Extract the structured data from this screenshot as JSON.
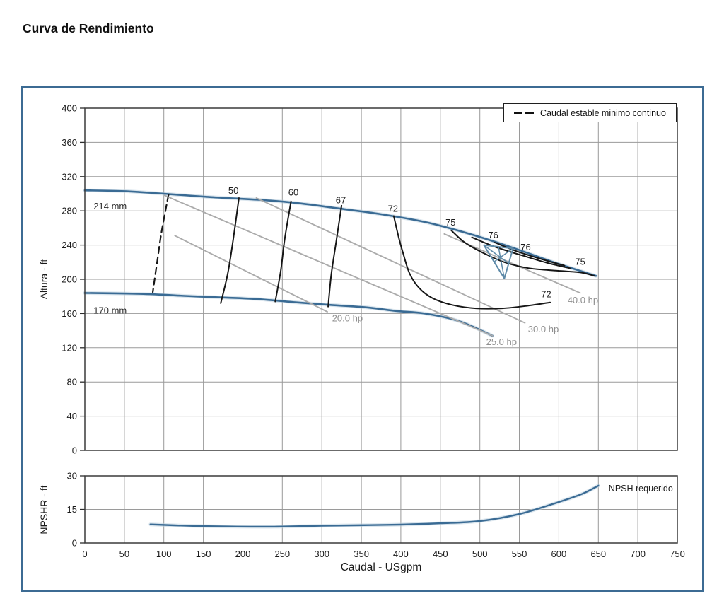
{
  "title": "Curva de Rendimiento",
  "axes": {
    "x_label": "Caudal - USgpm",
    "main_y_label": "Altura - ft",
    "npsh_y_label": "NPSHR - ft"
  },
  "legend": {
    "label": "Caudal estable minimo continuo",
    "symbol": "dashed-line"
  },
  "colors": {
    "panel_border": "#3c6b93",
    "curve_blue": "#3a6b94",
    "curve_halo": "#bdd2e0",
    "efficiency_black": "#161616",
    "power_gray": "#ababab",
    "label_gray": "#8f8f8f",
    "grid_gray": "#9a9a9a",
    "marker_blue": "#5e8aa8"
  },
  "chart_data": [
    {
      "type": "line",
      "name": "performance-curve",
      "ylabel": "Altura - ft",
      "xlabel": "Caudal - USgpm",
      "xlim": [
        0,
        750
      ],
      "ylim": [
        0,
        400
      ],
      "xticks": [
        0,
        50,
        100,
        150,
        200,
        250,
        300,
        350,
        400,
        450,
        500,
        550,
        600,
        650,
        700,
        750
      ],
      "yticks": [
        0,
        40,
        80,
        120,
        160,
        200,
        240,
        280,
        320,
        360,
        400
      ],
      "show_x_tick_labels": false,
      "grid": true,
      "legend_position": "top-right",
      "series": [
        {
          "name": "impeller-214mm",
          "color": "#3a6b94",
          "width": 2.6,
          "halo": true,
          "points": [
            [
              0,
              304
            ],
            [
              50,
              303
            ],
            [
              100,
              300
            ],
            [
              160,
              296
            ],
            [
              220,
              293
            ],
            [
              270,
              289
            ],
            [
              320,
              283
            ],
            [
              375,
              276
            ],
            [
              430,
              267
            ],
            [
              480,
              255
            ],
            [
              535,
              239
            ],
            [
              590,
              221
            ],
            [
              647,
              204
            ]
          ]
        },
        {
          "name": "impeller-170mm",
          "color": "#3a6b94",
          "width": 2.6,
          "halo": true,
          "points": [
            [
              0,
              184
            ],
            [
              70,
              183
            ],
            [
              140,
              180
            ],
            [
              215,
              177
            ],
            [
              268,
              173
            ],
            [
              311,
              170
            ],
            [
              358,
              167
            ],
            [
              394,
              163
            ],
            [
              430,
              160
            ],
            [
              474,
              151
            ],
            [
              516,
              134
            ]
          ]
        },
        {
          "name": "min-stable-flow",
          "color": "#161616",
          "width": 2.2,
          "dash": "9 6",
          "points": [
            [
              106,
              299
            ],
            [
              97,
              255
            ],
            [
              91,
              217
            ],
            [
              86,
              185
            ]
          ]
        },
        {
          "name": "power-20hp",
          "color": "#ababab",
          "width": 1.9,
          "points": [
            [
              114,
              251
            ],
            [
              307,
              162
            ]
          ]
        },
        {
          "name": "power-25hp",
          "color": "#ababab",
          "width": 1.9,
          "points": [
            [
              101,
              298
            ],
            [
              516,
              134
            ]
          ]
        },
        {
          "name": "power-30hp",
          "color": "#ababab",
          "width": 1.9,
          "points": [
            [
              217,
              295
            ],
            [
              557,
              149
            ]
          ]
        },
        {
          "name": "power-40hp",
          "color": "#ababab",
          "width": 1.9,
          "points": [
            [
              455,
              253
            ],
            [
              627,
              184
            ]
          ]
        },
        {
          "name": "efficiency-50",
          "color": "#161616",
          "width": 2,
          "points": [
            [
              195,
              295
            ],
            [
              188,
              248
            ],
            [
              181,
              207
            ],
            [
              172,
              172
            ]
          ]
        },
        {
          "name": "efficiency-60",
          "color": "#161616",
          "width": 2,
          "points": [
            [
              261,
              291
            ],
            [
              253,
              247
            ],
            [
              248,
              210
            ],
            [
              241,
              174
            ]
          ]
        },
        {
          "name": "efficiency-67",
          "color": "#161616",
          "width": 2,
          "points": [
            [
              325,
              286
            ],
            [
              318,
              243
            ],
            [
              312,
              206
            ],
            [
              308,
              168
            ]
          ]
        },
        {
          "name": "efficiency-72",
          "color": "#161616",
          "width": 2,
          "points": [
            [
              391,
              274
            ],
            [
              397,
              250
            ],
            [
              403,
              230
            ],
            [
              411,
              207
            ],
            [
              423,
              190
            ],
            [
              440,
              178
            ],
            [
              465,
              170
            ],
            [
              495,
              166
            ],
            [
              528,
              166
            ],
            [
              560,
              169
            ],
            [
              589,
              173
            ]
          ]
        },
        {
          "name": "efficiency-75",
          "color": "#161616",
          "width": 2,
          "points": [
            [
              464,
              257
            ],
            [
              481,
              243
            ],
            [
              506,
              230
            ],
            [
              531,
              220
            ],
            [
              562,
              213
            ],
            [
              598,
              210
            ],
            [
              627,
              208
            ],
            [
              645,
              204
            ]
          ]
        },
        {
          "name": "efficiency-76-upper",
          "color": "#161616",
          "width": 2,
          "points": [
            [
              490,
              249
            ],
            [
              519,
              238
            ],
            [
              553,
              228
            ],
            [
              586,
              219
            ],
            [
              614,
              213
            ]
          ]
        },
        {
          "name": "efficiency-76-lower",
          "color": "#161616",
          "width": 2,
          "points": [
            [
              519,
              243
            ],
            [
              549,
              232
            ],
            [
              580,
              223
            ],
            [
              607,
              216
            ]
          ]
        }
      ],
      "marker": {
        "name": "duty-point-triangle",
        "color": "#5e8aa8",
        "points": [
          [
            505,
            240
          ],
          [
            542,
            236
          ],
          [
            531,
            201
          ]
        ]
      },
      "annotations": [
        {
          "text": "214 mm",
          "x": 11,
          "y": 282,
          "anchor": "start",
          "cls": "mm"
        },
        {
          "text": "170 mm",
          "x": 11,
          "y": 160,
          "anchor": "start",
          "cls": "mm"
        },
        {
          "text": "50",
          "x": 188,
          "y": 300
        },
        {
          "text": "60",
          "x": 264,
          "y": 298
        },
        {
          "text": "67",
          "x": 324,
          "y": 289
        },
        {
          "text": "72",
          "x": 390,
          "y": 279
        },
        {
          "text": "75",
          "x": 463,
          "y": 263
        },
        {
          "text": "76",
          "x": 517,
          "y": 248
        },
        {
          "text": "76",
          "x": 558,
          "y": 234
        },
        {
          "text": "75",
          "x": 627,
          "y": 217
        },
        {
          "text": "72",
          "x": 584,
          "y": 179
        },
        {
          "text": "20.0 hp",
          "x": 313,
          "y": 151,
          "anchor": "start",
          "cls": "gray"
        },
        {
          "text": "25.0 hp",
          "x": 508,
          "y": 123,
          "anchor": "start",
          "cls": "gray"
        },
        {
          "text": "30.0 hp",
          "x": 561,
          "y": 138,
          "anchor": "start",
          "cls": "gray"
        },
        {
          "text": "40.0 hp",
          "x": 611,
          "y": 172,
          "anchor": "start",
          "cls": "gray"
        }
      ]
    },
    {
      "type": "line",
      "name": "npsh-curve",
      "ylabel": "NPSHR - ft",
      "xlabel": "Caudal - USgpm",
      "xlim": [
        0,
        750
      ],
      "ylim": [
        0,
        30
      ],
      "xticks": [
        0,
        50,
        100,
        150,
        200,
        250,
        300,
        350,
        400,
        450,
        500,
        550,
        600,
        650,
        700,
        750
      ],
      "yticks": [
        0,
        15,
        30
      ],
      "show_x_tick_labels": true,
      "grid": true,
      "series": [
        {
          "name": "npsh-required",
          "color": "#3a6b94",
          "width": 2.4,
          "halo": true,
          "points": [
            [
              83,
              8.3
            ],
            [
              130,
              7.7
            ],
            [
              180,
              7.4
            ],
            [
              240,
              7.3
            ],
            [
              300,
              7.7
            ],
            [
              360,
              8.0
            ],
            [
              400,
              8.2
            ],
            [
              450,
              8.8
            ],
            [
              500,
              9.8
            ],
            [
              550,
              12.9
            ],
            [
              600,
              18.3
            ],
            [
              630,
              22
            ],
            [
              650,
              25.6
            ]
          ]
        }
      ],
      "annotations": [
        {
          "text": "NPSH requerido",
          "x": 663,
          "y": 23,
          "anchor": "start",
          "cls": "small"
        }
      ]
    }
  ]
}
